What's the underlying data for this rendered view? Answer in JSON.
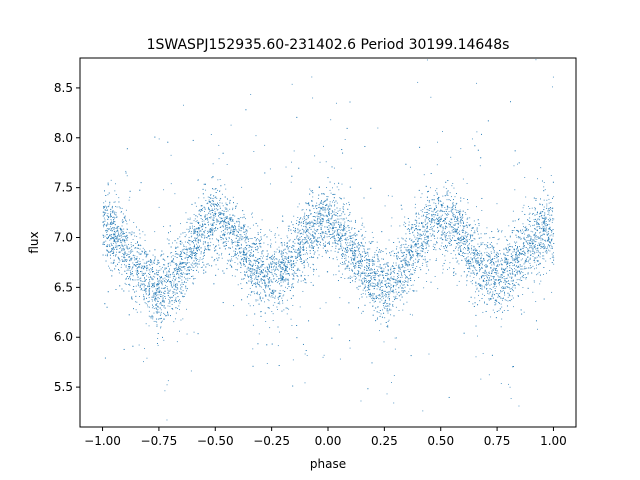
{
  "chart_data": {
    "type": "scatter",
    "title": "1SWASPJ152935.60-231402.6 Period 30199.14648s",
    "xlabel": "phase",
    "ylabel": "flux",
    "xlim": [
      -1.1,
      1.1
    ],
    "ylim": [
      5.1,
      8.8
    ],
    "xticks": [
      {
        "value": -1.0,
        "label": "−1.00"
      },
      {
        "value": -0.75,
        "label": "−0.75"
      },
      {
        "value": -0.5,
        "label": "−0.50"
      },
      {
        "value": -0.25,
        "label": "−0.25"
      },
      {
        "value": 0.0,
        "label": "0.00"
      },
      {
        "value": 0.25,
        "label": "0.25"
      },
      {
        "value": 0.5,
        "label": "0.50"
      },
      {
        "value": 0.75,
        "label": "0.75"
      },
      {
        "value": 1.0,
        "label": "1.00"
      }
    ],
    "yticks": [
      {
        "value": 5.5,
        "label": "5.5"
      },
      {
        "value": 6.0,
        "label": "6.0"
      },
      {
        "value": 6.5,
        "label": "6.5"
      },
      {
        "value": 7.0,
        "label": "7.0"
      },
      {
        "value": 7.5,
        "label": "7.5"
      },
      {
        "value": 8.0,
        "label": "8.0"
      },
      {
        "value": 8.5,
        "label": "8.5"
      }
    ],
    "grid": false,
    "series": [
      {
        "color": "#1f77b4",
        "x": [
          -1.0,
          -0.95,
          -0.9,
          -0.85,
          -0.8,
          -0.75,
          -0.7,
          -0.65,
          -0.6,
          -0.55,
          -0.5,
          -0.45,
          -0.4,
          -0.35,
          -0.3,
          -0.25,
          -0.2,
          -0.15,
          -0.1,
          -0.05,
          0.0,
          0.05,
          0.1,
          0.15,
          0.2,
          0.25,
          0.3,
          0.35,
          0.4,
          0.45,
          0.5,
          0.55,
          0.6,
          0.65,
          0.7,
          0.75,
          0.8,
          0.85,
          0.9,
          0.95,
          1.0
        ],
        "y": [
          7.1,
          7.05,
          6.9,
          6.72,
          6.55,
          6.47,
          6.55,
          6.72,
          6.92,
          7.08,
          7.17,
          7.12,
          6.98,
          6.8,
          6.64,
          6.6,
          6.68,
          6.84,
          7.0,
          7.12,
          7.15,
          7.05,
          6.88,
          6.7,
          6.57,
          6.52,
          6.6,
          6.78,
          6.97,
          7.12,
          7.17,
          7.1,
          6.95,
          6.78,
          6.64,
          6.6,
          6.68,
          6.83,
          6.98,
          7.08,
          7.1
        ],
        "spread": 0.18
      }
    ]
  }
}
